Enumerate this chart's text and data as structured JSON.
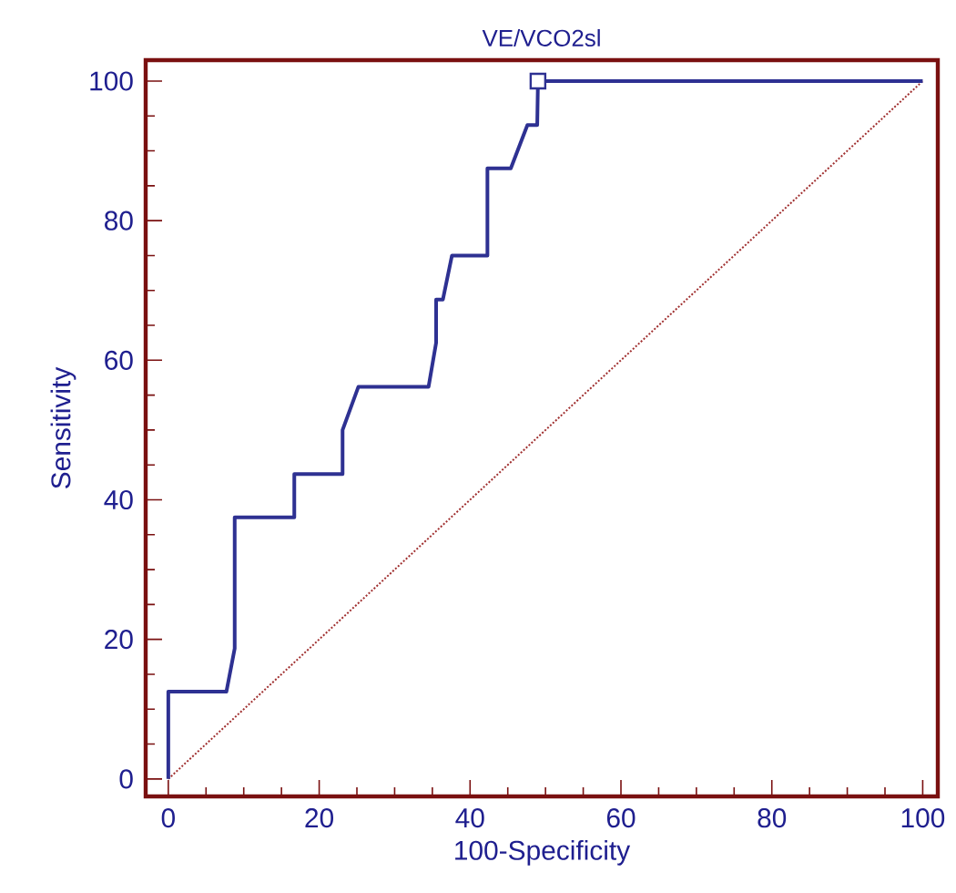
{
  "chart_data": {
    "type": "line",
    "title": "VE/VCO2sl",
    "xlabel": "100-Specificity",
    "ylabel": "Sensitivity",
    "xlim": [
      -3,
      102
    ],
    "ylim": [
      -2.5,
      103
    ],
    "xticks": [
      0,
      {
        "value": 5,
        "label": null
      },
      {
        "value": 10,
        "label": null
      },
      {
        "value": 15,
        "label": null
      },
      20,
      {
        "value": 25,
        "label": null
      },
      {
        "value": 30,
        "label": null
      },
      {
        "value": 35,
        "label": null
      },
      40,
      {
        "value": 45,
        "label": null
      },
      {
        "value": 50,
        "label": null
      },
      {
        "value": 55,
        "label": null
      },
      60,
      {
        "value": 65,
        "label": null
      },
      {
        "value": 70,
        "label": null
      },
      {
        "value": 75,
        "label": null
      },
      80,
      {
        "value": 85,
        "label": null
      },
      {
        "value": 90,
        "label": null
      },
      {
        "value": 95,
        "label": null
      },
      100
    ],
    "yticks": [
      0,
      {
        "value": 5,
        "label": null
      },
      {
        "value": 10,
        "label": null
      },
      {
        "value": 15,
        "label": null
      },
      20,
      {
        "value": 25,
        "label": null
      },
      {
        "value": 30,
        "label": null
      },
      {
        "value": 35,
        "label": null
      },
      40,
      {
        "value": 45,
        "label": null
      },
      {
        "value": 50,
        "label": null
      },
      {
        "value": 55,
        "label": null
      },
      60,
      {
        "value": 65,
        "label": null
      },
      {
        "value": 70,
        "label": null
      },
      {
        "value": 75,
        "label": null
      },
      80,
      {
        "value": 85,
        "label": null
      },
      {
        "value": 90,
        "label": null
      },
      {
        "value": 95,
        "label": null
      },
      100
    ],
    "series": [
      {
        "color": "#2e3192",
        "line_style": "solid",
        "x": [
          0,
          0,
          7.7,
          8.8,
          8.8,
          16.7,
          16.7,
          23.1,
          23.1,
          25.2,
          34.5,
          35.5,
          35.5,
          36.4,
          37.6,
          42.3,
          42.3,
          45.4,
          47.6,
          48.9,
          49,
          100
        ],
        "values": [
          0,
          12.5,
          12.5,
          18.7,
          37.5,
          37.5,
          43.7,
          43.7,
          50,
          56.2,
          56.2,
          62.5,
          68.7,
          68.7,
          75,
          75,
          87.5,
          87.5,
          93.7,
          93.7,
          100,
          100
        ]
      },
      {
        "type": "scatter",
        "color": "#2e3192",
        "marker": "square",
        "x": [
          49
        ],
        "values": [
          100
        ]
      },
      {
        "color": "#a03030",
        "line_style": "dotted",
        "x": [
          0,
          100
        ],
        "values": [
          0,
          100
        ]
      }
    ]
  }
}
